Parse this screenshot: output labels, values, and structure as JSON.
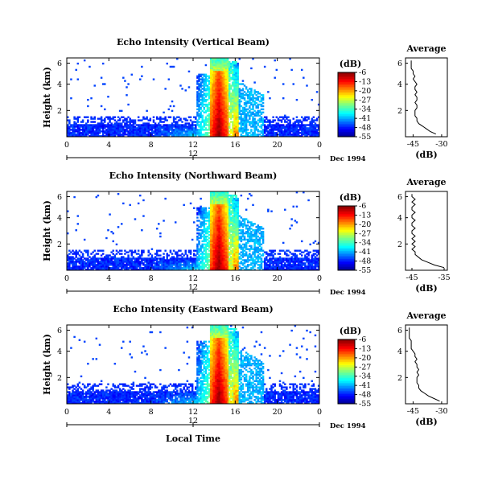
{
  "figure": {
    "xlabel": "Local Time",
    "date_label": "Dec 1994",
    "day_tick_label": "12",
    "average_title": "Average",
    "colorbar_unit": "(dB)",
    "ylabel": "Height (km)",
    "average_xlabel": "(dB)"
  },
  "chart_data": [
    {
      "type": "heatmap",
      "title": "Echo Intensity (Vertical Beam)",
      "xlabel": "Local Time",
      "ylabel": "Height (km)",
      "x_ticks": [
        "0",
        "4",
        "8",
        "12",
        "16",
        "20",
        "0"
      ],
      "y_ticks": [
        "6",
        "4",
        "2"
      ],
      "xlim": [
        0,
        24
      ],
      "ylim": [
        0,
        6
      ],
      "colorbar": {
        "label": "(dB)",
        "ticks": [
          "-6",
          "-13",
          "-20",
          "-27",
          "-34",
          "-41",
          "-48",
          "-55"
        ],
        "range": [
          -55,
          -6
        ]
      },
      "features": {
        "surface_layer_top_km": 0.9,
        "rain_band_hours": [
          13.6,
          15.3
        ],
        "secondary_band_hours": [
          15.9,
          16.3
        ],
        "convection_top_km": 6.0
      },
      "profile": {
        "title": "Average",
        "xlabel": "(dB)",
        "x_ticks": [
          "-45",
          "-30"
        ],
        "y_ticks": [
          "6",
          "4",
          "2"
        ],
        "xlim": [
          -49,
          -27
        ],
        "height_km": [
          0.2,
          0.4,
          0.6,
          0.8,
          1.0,
          1.2,
          1.4,
          1.6,
          1.8,
          2.0,
          2.2,
          2.4,
          2.6,
          2.8,
          3.0,
          3.2,
          3.4,
          3.6,
          3.8,
          4.0,
          4.2,
          4.4,
          4.6,
          4.8,
          5.0,
          5.2,
          5.4,
          5.6,
          5.8
        ],
        "intensity_db": [
          -33,
          -36,
          -38,
          -40,
          -42,
          -43,
          -43,
          -44,
          -44,
          -44,
          -43,
          -43,
          -44,
          -43,
          -43,
          -44,
          -43,
          -44,
          -44,
          -43,
          -44,
          -45,
          -44,
          -45,
          -45,
          -46,
          -46,
          -46,
          -46
        ]
      }
    },
    {
      "type": "heatmap",
      "title": "Echo Intensity (Northward Beam)",
      "xlabel": "Local Time",
      "ylabel": "Height (km)",
      "x_ticks": [
        "0",
        "4",
        "8",
        "12",
        "16",
        "20",
        "0"
      ],
      "y_ticks": [
        "6",
        "4",
        "2"
      ],
      "xlim": [
        0,
        24
      ],
      "ylim": [
        0,
        6
      ],
      "colorbar": {
        "label": "(dB)",
        "ticks": [
          "-6",
          "-13",
          "-20",
          "-27",
          "-34",
          "-41",
          "-48",
          "-55"
        ],
        "range": [
          -55,
          -6
        ]
      },
      "features": {
        "surface_layer_top_km": 0.9,
        "rain_band_hours": [
          13.6,
          15.3
        ],
        "secondary_band_hours": [
          15.9,
          16.3
        ],
        "convection_top_km": 6.0
      },
      "profile": {
        "title": "Average",
        "xlabel": "(dB)",
        "x_ticks": [
          "-45",
          "-35"
        ],
        "y_ticks": [
          "6",
          "4",
          "2"
        ],
        "xlim": [
          -47,
          -34
        ],
        "height_km": [
          0.2,
          0.4,
          0.6,
          0.8,
          1.0,
          1.2,
          1.4,
          1.6,
          1.8,
          2.0,
          2.2,
          2.4,
          2.6,
          2.8,
          3.0,
          3.2,
          3.4,
          3.6,
          3.8,
          4.0,
          4.2,
          4.4,
          4.6,
          4.8,
          5.0,
          5.2,
          5.4,
          5.6,
          5.8
        ],
        "intensity_db": [
          -35,
          -38,
          -40,
          -42,
          -43,
          -44,
          -44,
          -45,
          -44,
          -45,
          -44,
          -45,
          -44,
          -45,
          -45,
          -44,
          -45,
          -45,
          -44,
          -45,
          -45,
          -44,
          -45,
          -45,
          -44,
          -45,
          -44,
          -45,
          -45
        ]
      }
    },
    {
      "type": "heatmap",
      "title": "Echo Intensity (Eastward Beam)",
      "xlabel": "Local Time",
      "ylabel": "Height (km)",
      "x_ticks": [
        "0",
        "4",
        "8",
        "12",
        "16",
        "20",
        "0"
      ],
      "y_ticks": [
        "6",
        "4",
        "2"
      ],
      "xlim": [
        0,
        24
      ],
      "ylim": [
        0,
        6
      ],
      "colorbar": {
        "label": "(dB)",
        "ticks": [
          "-6",
          "-13",
          "-20",
          "-27",
          "-34",
          "-41",
          "-48",
          "-55"
        ],
        "range": [
          -55,
          -6
        ]
      },
      "features": {
        "surface_layer_top_km": 0.9,
        "rain_band_hours": [
          13.6,
          15.3
        ],
        "secondary_band_hours": [
          15.9,
          16.3
        ],
        "convection_top_km": 6.0
      },
      "profile": {
        "title": "Average",
        "xlabel": "(dB)",
        "x_ticks": [
          "-45",
          "-30"
        ],
        "y_ticks": [
          "6",
          "4",
          "2"
        ],
        "xlim": [
          -49,
          -27
        ],
        "height_km": [
          0.2,
          0.4,
          0.6,
          0.8,
          1.0,
          1.2,
          1.4,
          1.6,
          1.8,
          2.0,
          2.2,
          2.4,
          2.6,
          2.8,
          3.0,
          3.2,
          3.4,
          3.6,
          3.8,
          4.0,
          4.2,
          4.4,
          4.6,
          4.8,
          5.0,
          5.2,
          5.4,
          5.6,
          5.8
        ],
        "intensity_db": [
          -31,
          -34,
          -37,
          -39,
          -41,
          -42,
          -42,
          -43,
          -43,
          -43,
          -42,
          -43,
          -42,
          -43,
          -43,
          -44,
          -43,
          -44,
          -44,
          -45,
          -46,
          -46,
          -46,
          -46,
          -47,
          -47,
          -47,
          -47,
          -47
        ]
      }
    }
  ]
}
